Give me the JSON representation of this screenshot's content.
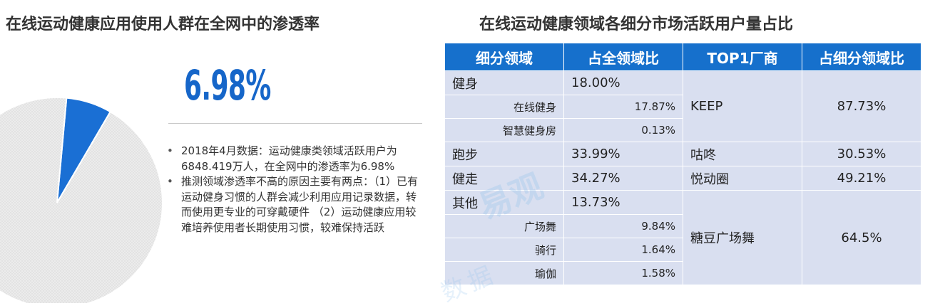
{
  "left": {
    "title": "在线运动健康应用使用人群在全网中的渗透率",
    "big_value": "6.98%",
    "notes": [
      "2018年4月数据：运动健康类领域活跃用户为6848.419万人，在全网中的渗透率为6.98%",
      "推测领域渗透率不高的原因主要有两点：（1）已有运动健身习惯的人群会减少利用应用记录数据，转而使用更专业的可穿戴硬件 （2）运动健康应用较难培养使用者长期使用习惯，较难保持活跃"
    ]
  },
  "right": {
    "title": "在线运动健康领域各细分市场活跃用户量占比"
  },
  "colors": {
    "pie_highlight": "#1a6fd4",
    "pie_rest": "#e6e6e6",
    "header_bg": "#1670cc",
    "cell_bg": "#d9dff0",
    "accent": "#1666c9"
  },
  "watermark": {
    "main": "易观",
    "sub": "数据"
  },
  "chart_data": [
    {
      "type": "pie",
      "title": "在线运动健康应用使用人群在全网中的渗透率",
      "slices": [
        {
          "label": "6.98%",
          "value": 6.98
        },
        {
          "label": "",
          "value": 93.02
        }
      ]
    },
    {
      "type": "table",
      "title": "在线运动健康领域各细分市场活跃用户量占比",
      "columns": [
        "细分领域",
        "占全领域比",
        "TOP1厂商",
        "占细分领域比"
      ],
      "rows": [
        {
          "segment": "健身",
          "share": "18.00%",
          "level": "main"
        },
        {
          "segment": "在线健身",
          "share": "17.87%",
          "level": "sub"
        },
        {
          "segment": "智慧健身房",
          "share": "0.13%",
          "level": "sub"
        },
        {
          "segment": "跑步",
          "share": "33.99%",
          "level": "main"
        },
        {
          "segment": "健走",
          "share": "34.27%",
          "level": "main"
        },
        {
          "segment": "其他",
          "share": "13.73%",
          "level": "main"
        },
        {
          "segment": "广场舞",
          "share": "9.84%",
          "level": "sub"
        },
        {
          "segment": "骑行",
          "share": "1.64%",
          "level": "sub"
        },
        {
          "segment": "瑜伽",
          "share": "1.58%",
          "level": "sub"
        }
      ],
      "vendors": [
        {
          "name": "KEEP",
          "share": "87.73%",
          "rows": [
            0,
            2
          ]
        },
        {
          "name": "咕咚",
          "share": "30.53%",
          "rows": [
            3,
            3
          ]
        },
        {
          "name": "悦动圈",
          "share": "49.21%",
          "rows": [
            4,
            4
          ]
        },
        {
          "name": "糖豆广场舞",
          "share": "64.5%",
          "rows": [
            5,
            8
          ]
        }
      ]
    }
  ]
}
